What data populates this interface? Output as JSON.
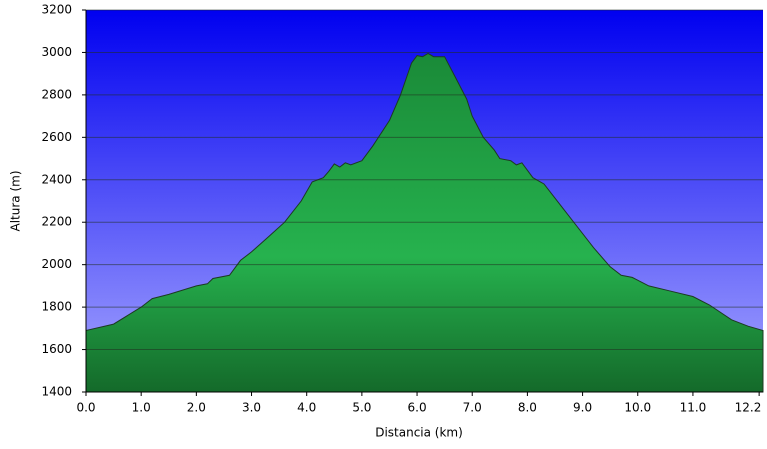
{
  "chart_data": {
    "type": "area",
    "x_label": "Distancia   (km)",
    "y_label": "Altura (m)",
    "x": [
      0,
      0.5,
      1.0,
      1.2,
      1.5,
      2.0,
      2.2,
      2.3,
      2.6,
      2.8,
      3.0,
      3.3,
      3.6,
      3.9,
      4.1,
      4.3,
      4.4,
      4.5,
      4.6,
      4.7,
      4.8,
      5.0,
      5.2,
      5.5,
      5.7,
      5.9,
      6.0,
      6.1,
      6.2,
      6.3,
      6.5,
      6.7,
      6.9,
      7.0,
      7.2,
      7.4,
      7.5,
      7.7,
      7.8,
      7.9,
      8.1,
      8.3,
      8.6,
      8.9,
      9.2,
      9.5,
      9.7,
      9.9,
      10.2,
      10.6,
      11.0,
      11.3,
      11.7,
      12.0,
      12.27
    ],
    "series": [
      {
        "color": "#22b24c",
        "values": [
          1690,
          1720,
          1800,
          1840,
          1860,
          1900,
          1910,
          1935,
          1950,
          2020,
          2060,
          2130,
          2200,
          2300,
          2390,
          2410,
          2440,
          2475,
          2460,
          2480,
          2470,
          2490,
          2560,
          2680,
          2800,
          2950,
          2985,
          2980,
          2995,
          2980,
          2980,
          2880,
          2780,
          2700,
          2600,
          2540,
          2500,
          2490,
          2470,
          2480,
          2410,
          2380,
          2280,
          2180,
          2080,
          1990,
          1950,
          1940,
          1900,
          1875,
          1850,
          1810,
          1740,
          1710,
          1690
        ]
      }
    ],
    "xlim": [
      0,
      12.27
    ],
    "ylim": [
      1400,
      3200
    ],
    "xticks": [
      {
        "value": 0,
        "label": "0.0"
      },
      {
        "value": 1,
        "label": "1.0"
      },
      {
        "value": 2,
        "label": "2.0"
      },
      {
        "value": 3,
        "label": "3.0"
      },
      {
        "value": 4,
        "label": "4.0"
      },
      {
        "value": 5,
        "label": "5.0"
      },
      {
        "value": 6,
        "label": "6.0"
      },
      {
        "value": 7,
        "label": "7.0"
      },
      {
        "value": 8,
        "label": "8.0"
      },
      {
        "value": 9,
        "label": "9.0"
      },
      {
        "value": 10,
        "label": "10.0"
      },
      {
        "value": 11,
        "label": "11.0"
      },
      12.2
    ],
    "yticks": [
      1400,
      1600,
      1800,
      2000,
      2200,
      2400,
      2600,
      2800,
      3000,
      3200
    ],
    "grid": true
  }
}
